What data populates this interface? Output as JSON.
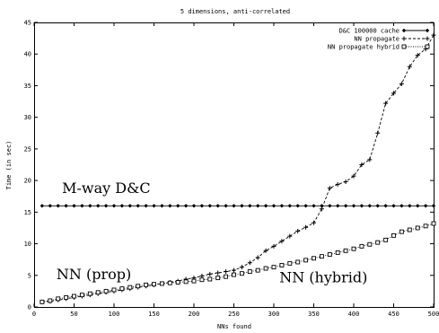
{
  "chart_data": {
    "type": "line",
    "title": "5 dimensions, anti-correlated",
    "xlabel": "NNs found",
    "ylabel": "Time (in sec)",
    "xlim": [
      0,
      500
    ],
    "ylim": [
      0,
      45
    ],
    "x_ticks": [
      0,
      50,
      100,
      150,
      200,
      250,
      300,
      350,
      400,
      450,
      500
    ],
    "y_ticks": [
      0,
      5,
      10,
      15,
      20,
      25,
      30,
      35,
      40,
      45
    ],
    "grid": false,
    "legend_position": "top-right",
    "series": [
      {
        "name": "D&C 100000 cache",
        "marker": "diamond",
        "line_style": "solid",
        "x": [
          10,
          20,
          30,
          40,
          50,
          60,
          70,
          80,
          90,
          100,
          110,
          120,
          130,
          140,
          150,
          160,
          170,
          180,
          190,
          200,
          210,
          220,
          230,
          240,
          250,
          260,
          270,
          280,
          290,
          300,
          310,
          320,
          330,
          340,
          350,
          360,
          370,
          380,
          390,
          400,
          410,
          420,
          430,
          440,
          450,
          460,
          470,
          480,
          490,
          500
        ],
        "y": [
          16,
          16,
          16,
          16,
          16,
          16,
          16,
          16,
          16,
          16,
          16,
          16,
          16,
          16,
          16,
          16,
          16,
          16,
          16,
          16,
          16,
          16,
          16,
          16,
          16,
          16,
          16,
          16,
          16,
          16,
          16,
          16,
          16,
          16,
          16,
          16,
          16,
          16,
          16,
          16,
          16,
          16,
          16,
          16,
          16,
          16,
          16,
          16,
          16,
          16
        ]
      },
      {
        "name": "NN propagate",
        "marker": "plus",
        "line_style": "dashed",
        "x": [
          10,
          20,
          30,
          40,
          50,
          60,
          70,
          80,
          90,
          100,
          110,
          120,
          130,
          140,
          150,
          160,
          170,
          180,
          190,
          200,
          210,
          220,
          230,
          240,
          250,
          260,
          270,
          280,
          290,
          300,
          310,
          320,
          330,
          340,
          350,
          360,
          370,
          380,
          390,
          400,
          410,
          420,
          430,
          440,
          450,
          460,
          470,
          480,
          490,
          500
        ],
        "y": [
          0.8,
          0.9,
          1.1,
          1.3,
          1.5,
          1.7,
          1.9,
          2.1,
          2.3,
          2.5,
          2.7,
          2.9,
          3.1,
          3.3,
          3.5,
          3.7,
          3.9,
          4.1,
          4.4,
          4.6,
          4.9,
          5.2,
          5.4,
          5.6,
          5.8,
          6.3,
          7.0,
          7.8,
          8.9,
          9.6,
          10.4,
          11.2,
          12.0,
          12.6,
          13.3,
          15.5,
          18.8,
          19.4,
          19.8,
          20.7,
          22.5,
          23.3,
          27.5,
          32.2,
          33.8,
          35.3,
          38.0,
          39.8,
          40.8,
          43.0
        ]
      },
      {
        "name": "NN propagate hybrid",
        "marker": "square",
        "line_style": "dotted",
        "x": [
          10,
          20,
          30,
          40,
          50,
          60,
          70,
          80,
          90,
          100,
          110,
          120,
          130,
          140,
          150,
          160,
          170,
          180,
          190,
          200,
          210,
          220,
          230,
          240,
          250,
          260,
          270,
          280,
          290,
          300,
          310,
          320,
          330,
          340,
          350,
          360,
          370,
          380,
          390,
          400,
          410,
          420,
          430,
          440,
          450,
          460,
          470,
          480,
          490,
          500
        ],
        "y": [
          0.8,
          1.0,
          1.3,
          1.5,
          1.7,
          1.9,
          2.1,
          2.3,
          2.5,
          2.7,
          2.9,
          3.1,
          3.3,
          3.5,
          3.6,
          3.7,
          3.8,
          3.9,
          4.0,
          4.1,
          4.3,
          4.4,
          4.6,
          4.8,
          5.1,
          5.3,
          5.6,
          5.8,
          6.1,
          6.3,
          6.6,
          6.9,
          7.1,
          7.4,
          7.7,
          8.0,
          8.3,
          8.6,
          8.9,
          9.2,
          9.6,
          9.9,
          10.2,
          10.6,
          11.3,
          11.9,
          12.2,
          12.5,
          12.8,
          13.2
        ]
      }
    ],
    "annotations": [
      {
        "text": "M-way D&C",
        "x": 35,
        "y": 18.0
      },
      {
        "text": "NN (prop)",
        "x": 28,
        "y": 4.4
      },
      {
        "text": "NN (hybrid)",
        "x": 307,
        "y": 3.9
      }
    ]
  }
}
